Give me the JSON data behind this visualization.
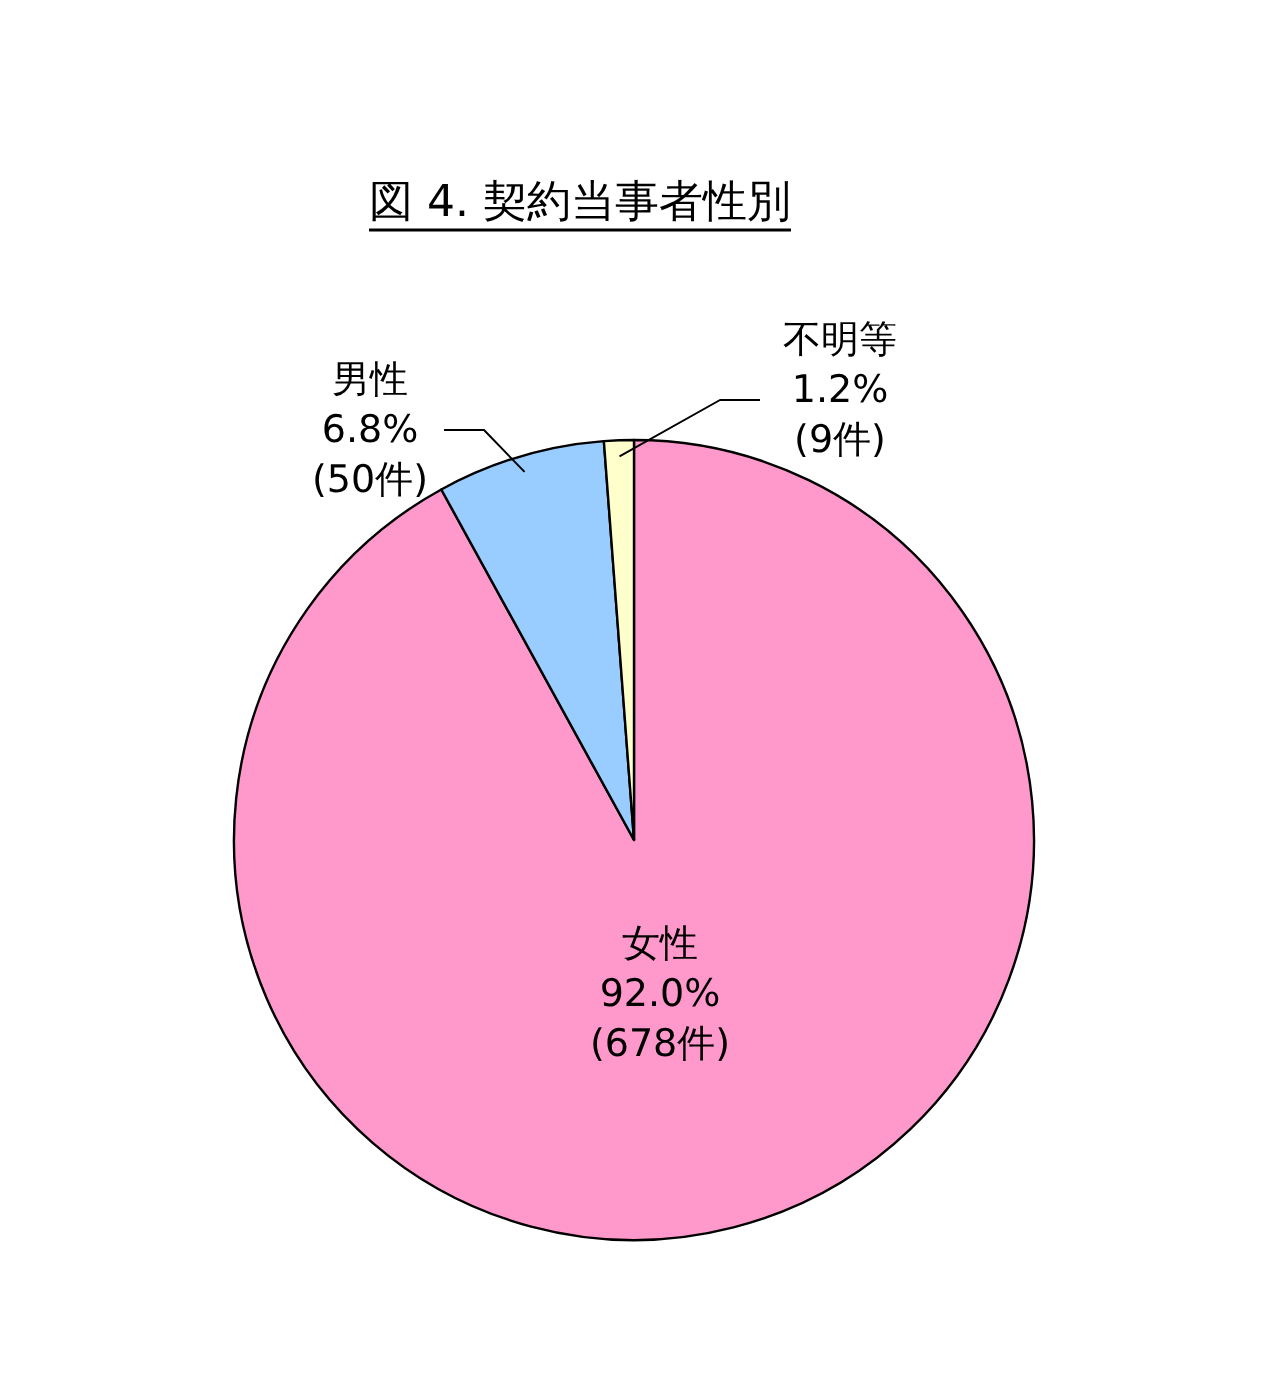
{
  "chart_data": {
    "type": "pie",
    "title": "図 4. 契約当事者性別",
    "categories": [
      "女性",
      "男性",
      "不明等"
    ],
    "values": [
      92.0,
      6.8,
      1.2
    ],
    "colors": [
      "#ff99cc",
      "#99ccff",
      "#ffffcc"
    ],
    "value_labels": [
      "92.0%\n(678件)",
      "6.8%\n(50件)",
      "1.2%\n(9件)"
    ]
  }
}
